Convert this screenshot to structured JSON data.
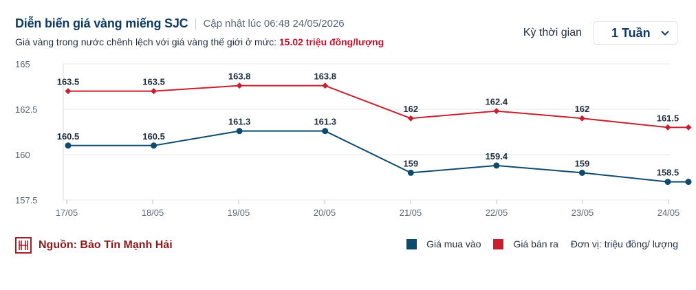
{
  "header": {
    "title": "Diễn biến giá vàng miếng SJC",
    "updated": "Cập nhật lúc 06:48 24/05/2026",
    "subtitle_prefix": "Giá vàng trong nước chênh lệch với giá vàng thế giới ở mức:",
    "subtitle_value": "15.02 triệu đồng/lượng"
  },
  "period": {
    "label": "Kỳ thời gian",
    "selected": "1 Tuần"
  },
  "footer": {
    "source": "Nguồn: Bảo Tín Mạnh Hải",
    "legend_buy": "Giá mua vào",
    "legend_sell": "Giá bán ra",
    "unit": "Đơn vị: triệu đồng/ lượng"
  },
  "colors": {
    "buy": "#0d4a6b",
    "sell": "#c8202f",
    "title": "#0d3b66"
  },
  "chart_data": {
    "type": "line",
    "categories": [
      "17/05",
      "18/05",
      "19/05",
      "20/05",
      "21/05",
      "22/05",
      "23/05",
      "24/05"
    ],
    "x_tick_labels": [
      "17/05",
      "18/05",
      "19/05",
      "20/05",
      "21/05",
      "22/05",
      "23/05",
      "24/05"
    ],
    "y_ticks": [
      "157.5",
      "160",
      "162.5",
      "165"
    ],
    "ylim": [
      157.5,
      165
    ],
    "grid": true,
    "series": [
      {
        "name": "Giá bán ra",
        "color": "#c8202f",
        "marker": "diamond",
        "points": [
          {
            "x": "17/05",
            "y": 163.5,
            "label": "163.5"
          },
          {
            "x": "18/05",
            "y": 163.5,
            "label": "163.5"
          },
          {
            "x": "19/05",
            "y": 163.8,
            "label": "163.8"
          },
          {
            "x": "20/05",
            "y": 163.8,
            "label": "163.8"
          },
          {
            "x": "21/05",
            "y": 162,
            "label": "162"
          },
          {
            "x": "22/05",
            "y": 162.4,
            "label": "162.4"
          },
          {
            "x": "23/05",
            "y": 162,
            "label": "162"
          },
          {
            "x": "24/05",
            "y": 161.5,
            "label": "161.5"
          },
          {
            "x": "24/05",
            "y": 161.5,
            "label": ""
          }
        ]
      },
      {
        "name": "Giá mua vào",
        "color": "#0d4a6b",
        "marker": "circle",
        "points": [
          {
            "x": "17/05",
            "y": 160.5,
            "label": "160.5"
          },
          {
            "x": "18/05",
            "y": 160.5,
            "label": "160.5"
          },
          {
            "x": "19/05",
            "y": 161.3,
            "label": "161.3"
          },
          {
            "x": "20/05",
            "y": 161.3,
            "label": "161.3"
          },
          {
            "x": "21/05",
            "y": 159,
            "label": "159"
          },
          {
            "x": "22/05",
            "y": 159.4,
            "label": "159.4"
          },
          {
            "x": "23/05",
            "y": 159,
            "label": "159"
          },
          {
            "x": "24/05",
            "y": 158.5,
            "label": "158.5"
          },
          {
            "x": "24/05",
            "y": 158.5,
            "label": ""
          }
        ]
      }
    ]
  }
}
